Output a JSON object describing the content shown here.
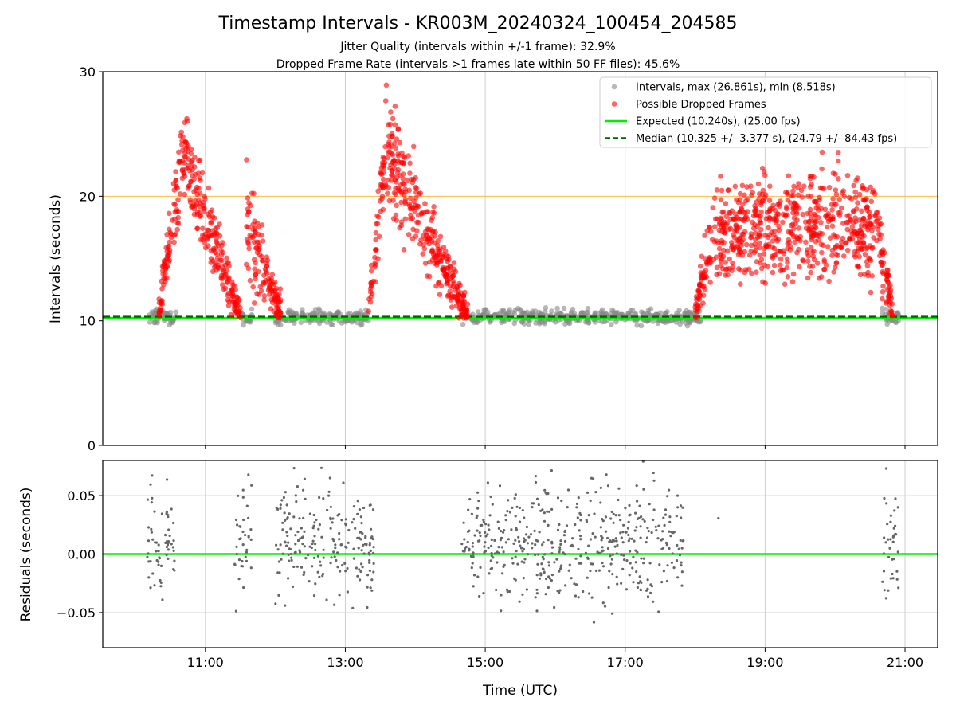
{
  "chart_data": [
    {
      "type": "scatter",
      "title": "Timestamp Intervals - KR003M_20240324_100454_204585",
      "subtitle_1": "Jitter Quality (intervals within +/-1 frame): 32.9%",
      "subtitle_2": "Dropped Frame Rate (intervals >1 frames late within 50 FF files): 45.6%",
      "xlabel": "",
      "ylabel": "Intervals (seconds)",
      "xlim": [
        "09:32",
        "21:28"
      ],
      "ylim": [
        0,
        30
      ],
      "y_ticks": [
        "0",
        "10",
        "20",
        "30"
      ],
      "x_ticks": [
        "11:00",
        "13:00",
        "15:00",
        "17:00",
        "19:00",
        "21:00"
      ],
      "grid": "x-axis",
      "legend_position": "upper right",
      "threshold_line": {
        "y": 20,
        "color": "#ffbb44"
      },
      "series": [
        {
          "name": "Intervals, max (26.861s), min (8.518s)",
          "color": "#888888",
          "kind": "points",
          "segments": [
            [
              "10:10",
              "10:35"
            ],
            [
              "11:30",
              "11:40"
            ],
            [
              "12:00",
              "13:20"
            ],
            [
              "14:40",
              "18:05"
            ],
            [
              "20:40",
              "20:55"
            ]
          ],
          "approx_center": 10.3,
          "approx_spread": 0.35
        },
        {
          "name": "Possible Dropped Frames",
          "color": "#ff0000",
          "kind": "points",
          "bursts": [
            {
              "start": "10:20",
              "end": "11:30",
              "peak": 23.5,
              "peak_at": "10:40"
            },
            {
              "start": "11:35",
              "end": "12:05",
              "peak": 18.0,
              "peak_at": "11:35"
            },
            {
              "start": "13:20",
              "end": "14:45",
              "peak": 24.0,
              "peak_at": "13:35"
            },
            {
              "start": "18:00",
              "end": "20:50",
              "peak": 18.0,
              "peak_at": "19:10"
            }
          ]
        },
        {
          "name": "Expected (10.240s), (25.00 fps)",
          "color": "#00ee00",
          "kind": "line",
          "y": 10.24
        },
        {
          "name": "Median (10.325 +/- 3.377 s), (24.79 +/- 84.43 fps)",
          "color": "#006400",
          "kind": "dashed-line",
          "y": 10.325
        }
      ]
    },
    {
      "type": "scatter",
      "title": "",
      "xlabel": "Time (UTC)",
      "ylabel": "Residuals (seconds)",
      "xlim": [
        "09:32",
        "21:28"
      ],
      "ylim": [
        -0.08,
        0.08
      ],
      "y_ticks": [
        "−0.05",
        "0.00",
        "0.05"
      ],
      "x_ticks": [
        "11:00",
        "13:00",
        "15:00",
        "17:00",
        "19:00",
        "21:00"
      ],
      "grid": "both",
      "series": [
        {
          "name": "",
          "color": "#666666",
          "kind": "points",
          "segments": [
            [
              "10:10",
              "10:35"
            ],
            [
              "11:25",
              "11:40"
            ],
            [
              "12:00",
              "13:25"
            ],
            [
              "14:40",
              "17:50"
            ],
            [
              "18:20",
              "18:20"
            ],
            [
              "20:40",
              "20:55"
            ]
          ],
          "approx_spread": 0.03
        },
        {
          "name": "",
          "color": "#00ee00",
          "kind": "line",
          "y": 0.0
        }
      ]
    }
  ]
}
